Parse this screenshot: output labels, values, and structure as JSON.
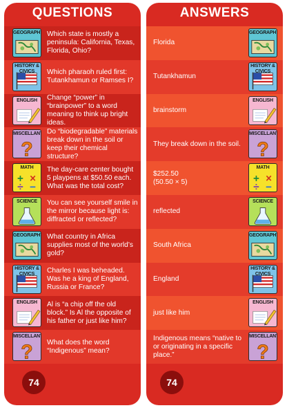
{
  "questions_card": {
    "title": "QUESTIONS",
    "page_number": "74",
    "rows": [
      {
        "category": "GEOGRAPHY",
        "icon": "map-icon",
        "text": "Which state is mostly a peninsula: California, Texas, Florida, Ohio?"
      },
      {
        "category": "HISTORY & CIVICS",
        "icon": "flag-icon",
        "text": "Which pharaoh ruled first: Tutankhamun or Ramses I?"
      },
      {
        "category": "ENGLISH",
        "icon": "pencil-icon",
        "text": "Change “power” in “brainpower” to a word meaning to think up bright ideas."
      },
      {
        "category": "MISCELLANY",
        "icon": "question-mark-icon",
        "text": "Do “biodegradable” materials break down in the soil or keep their chemical structure?"
      },
      {
        "category": "MATH",
        "icon": "math-symbols-icon",
        "text": "The day-care center bought 5 playpens at $50.50 each. What was the total cost?"
      },
      {
        "category": "SCIENCE",
        "icon": "flask-icon",
        "text": "You can see yourself smile in the mirror because light is: diffracted or reflected?"
      },
      {
        "category": "GEOGRAPHY",
        "icon": "map-icon",
        "text": "What country in Africa supplies most of the world’s gold?"
      },
      {
        "category": "HISTORY & CIVICS",
        "icon": "flag-icon",
        "text": "Charles I was beheaded. Was he a king of England, Russia or France?"
      },
      {
        "category": "ENGLISH",
        "icon": "pencil-icon",
        "text": "Al is “a chip off the old block.” Is Al the opposite of his father or just like him?"
      },
      {
        "category": "MISCELLANY",
        "icon": "question-mark-icon",
        "text": "What does the word “Indigenous” mean?"
      }
    ]
  },
  "answers_card": {
    "title": "ANSWERS",
    "page_number": "74",
    "rows": [
      {
        "category": "GEOGRAPHY",
        "icon": "map-icon",
        "text": "Florida"
      },
      {
        "category": "HISTORY & CIVICS",
        "icon": "flag-icon",
        "text": "Tutankhamun"
      },
      {
        "category": "ENGLISH",
        "icon": "pencil-icon",
        "text": "brainstorm"
      },
      {
        "category": "MISCELLANY",
        "icon": "question-mark-icon",
        "text": "They break down in the soil."
      },
      {
        "category": "MATH",
        "icon": "math-symbols-icon",
        "text": "$252.50\n(50.50 × 5)"
      },
      {
        "category": "SCIENCE",
        "icon": "flask-icon",
        "text": "reflected"
      },
      {
        "category": "GEOGRAPHY",
        "icon": "map-icon",
        "text": "South Africa"
      },
      {
        "category": "HISTORY & CIVICS",
        "icon": "flag-icon",
        "text": "England"
      },
      {
        "category": "ENGLISH",
        "icon": "pencil-icon",
        "text": "just like him"
      },
      {
        "category": "MISCELLANY",
        "icon": "question-mark-icon",
        "text": "Indigenous means “native to or originating in a specific place.”"
      }
    ]
  },
  "colors": {
    "card_red": "#d92a22",
    "page_circle": "#8b0e0c",
    "geography": "#5fc6d4",
    "history": "#7ec2e8",
    "english": "#f6b7d1",
    "miscellany": "#c9a2d6",
    "math": "#f6e12a",
    "science": "#b5e05a"
  }
}
